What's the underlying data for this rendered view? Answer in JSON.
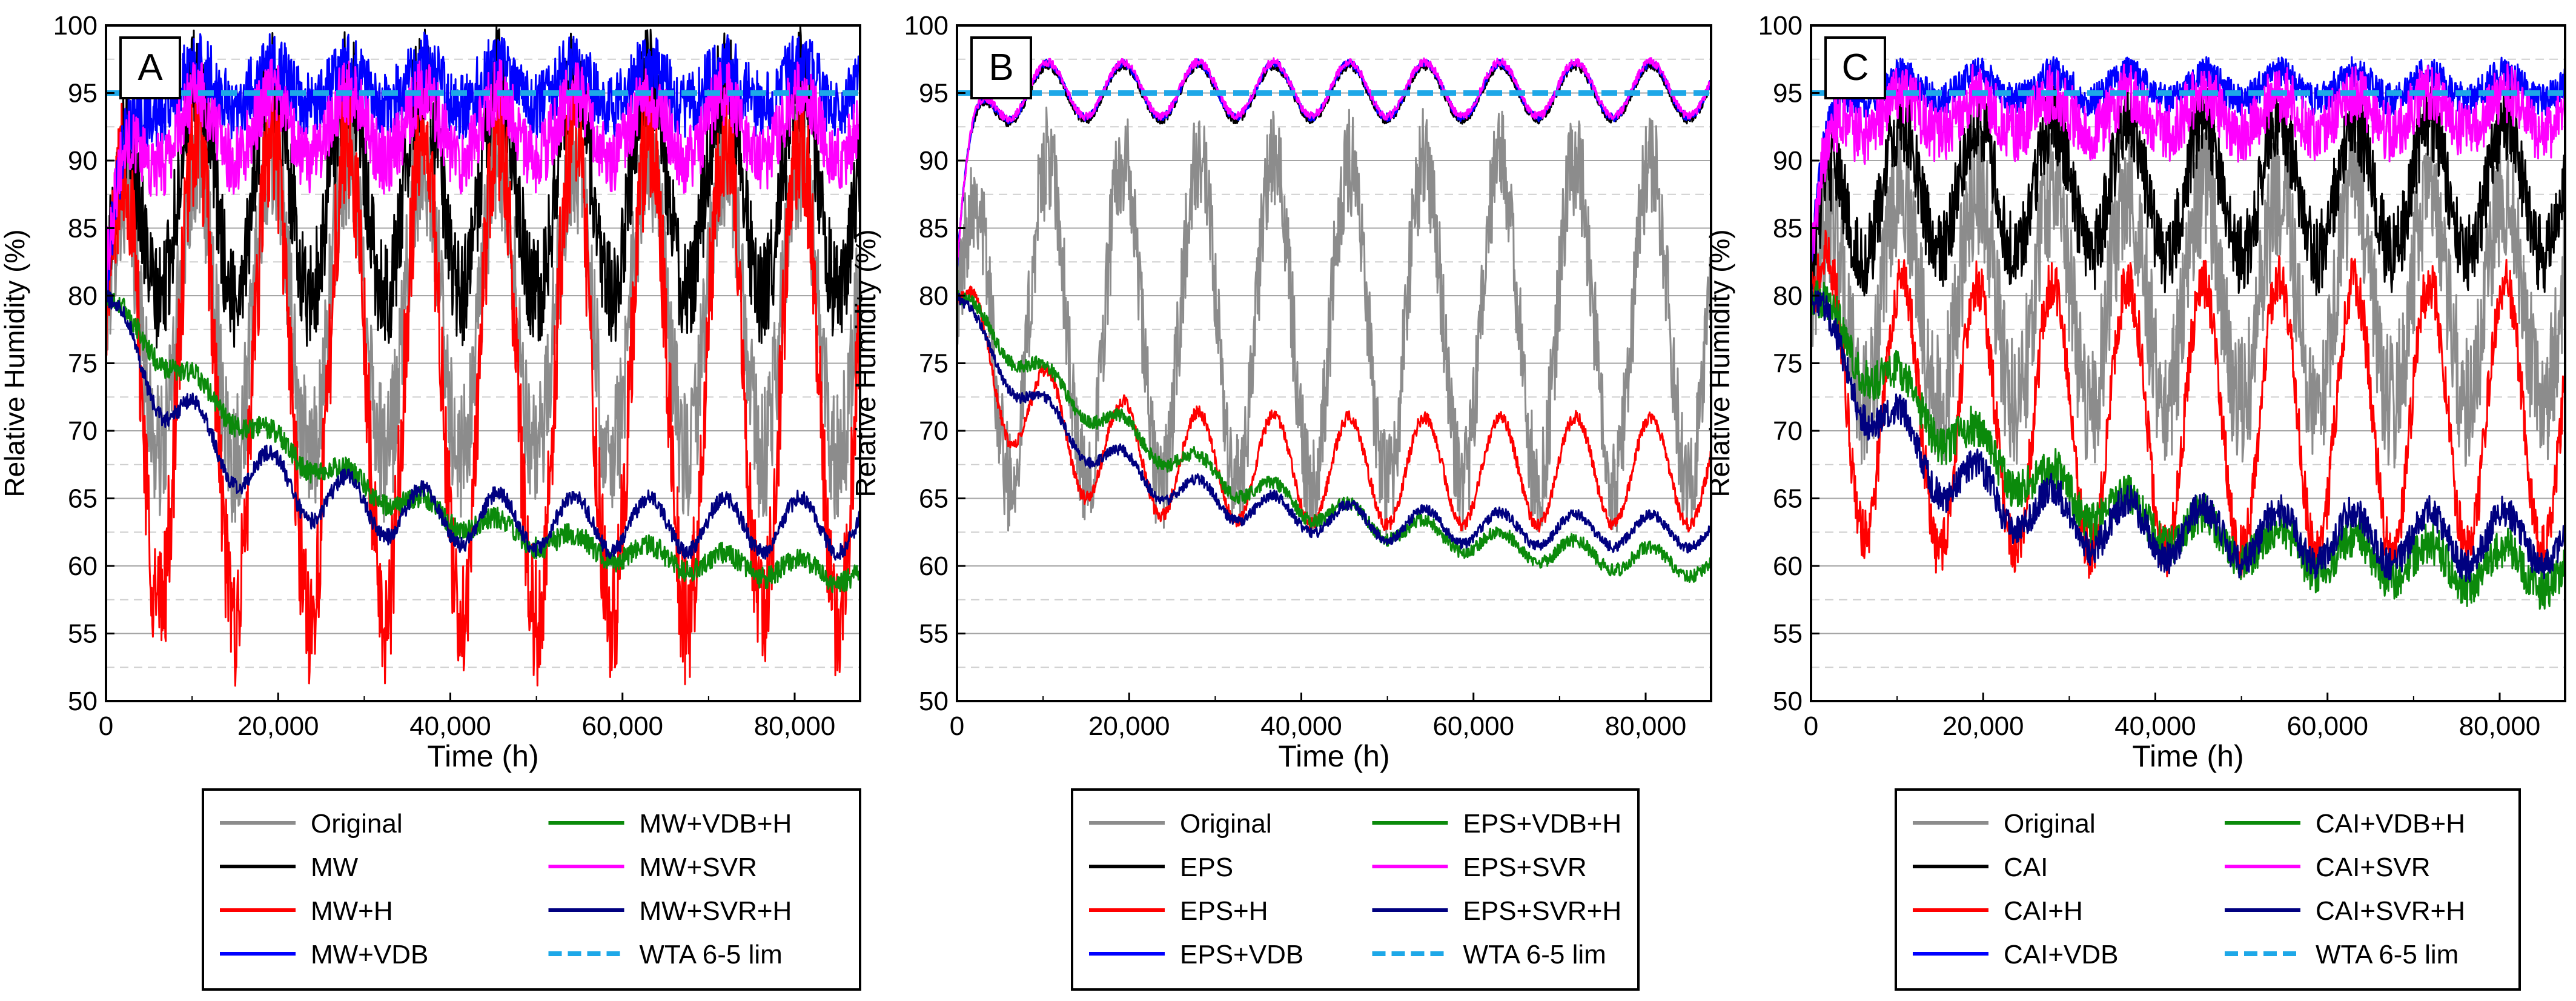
{
  "colors": {
    "Original": "#8c8c8c",
    "Base": "#000000",
    "H": "#ff0000",
    "VDB": "#0000ff",
    "VDBH": "#0b8a0b",
    "SVR": "#ff00ff",
    "SVRH": "#000080",
    "WTA": "#1ea8e8"
  },
  "chart_data": [
    {
      "type": "line",
      "panel_label": "A",
      "xlabel": "Time (h)",
      "ylabel": "Relative Humidity (%)",
      "xlim": [
        0,
        87600
      ],
      "ylim": [
        50,
        100
      ],
      "xticks": [
        0,
        20000,
        40000,
        60000,
        80000
      ],
      "xtick_labels": [
        "0",
        "20,000",
        "40,000",
        "60,000",
        "80,000"
      ],
      "yticks": [
        50,
        55,
        60,
        65,
        70,
        75,
        80,
        85,
        90,
        95,
        100
      ],
      "grid": "major solid, minor dashed",
      "legend_position": "bottom",
      "series": [
        {
          "key": "Original",
          "name": "Original",
          "style": "solid",
          "period_h": 8760,
          "mean": 79,
          "amp": 11,
          "noise": 5,
          "start": 80,
          "tau": 2500
        },
        {
          "key": "Base",
          "name": "MW",
          "style": "solid",
          "period_h": 8760,
          "mean": 88,
          "amp": 8,
          "noise": 4,
          "start": 82,
          "tau": 2500
        },
        {
          "key": "H",
          "name": "MW+H",
          "style": "solid",
          "period_h": 8760,
          "mean": 74,
          "amp": 18,
          "noise": 5,
          "start": 80,
          "tau": 2500
        },
        {
          "key": "VDB",
          "name": "MW+VDB",
          "style": "solid",
          "period_h": 8760,
          "mean": 95.5,
          "amp": 1.5,
          "noise": 2.5,
          "start": 80,
          "tau": 2000
        },
        {
          "key": "VDBH",
          "name": "MW+VDB+H",
          "style": "solid",
          "period_h": 8760,
          "mean": 58.5,
          "amp": 0.8,
          "noise": 0.8,
          "start": 80,
          "tau": 28000
        },
        {
          "key": "SVR",
          "name": "MW+SVR",
          "style": "solid",
          "period_h": 8760,
          "mean": 92.5,
          "amp": 2.5,
          "noise": 2.5,
          "start": 82,
          "tau": 2000
        },
        {
          "key": "SVRH",
          "name": "MW+SVR+H",
          "style": "solid",
          "period_h": 8760,
          "mean": 63,
          "amp": 2,
          "noise": 0.6,
          "start": 80,
          "tau": 12000
        },
        {
          "key": "WTA",
          "name": "WTA 6-5 lim",
          "style": "dashed",
          "constant": 95
        }
      ]
    },
    {
      "type": "line",
      "panel_label": "B",
      "xlabel": "Time (h)",
      "ylabel": "Relative Humidity (%)",
      "xlim": [
        0,
        87600
      ],
      "ylim": [
        50,
        100
      ],
      "xticks": [
        0,
        20000,
        40000,
        60000,
        80000
      ],
      "xtick_labels": [
        "0",
        "20,000",
        "40,000",
        "60,000",
        "80,000"
      ],
      "yticks": [
        50,
        55,
        60,
        65,
        70,
        75,
        80,
        85,
        90,
        95,
        100
      ],
      "grid": "major solid, minor dashed",
      "legend_position": "bottom",
      "series": [
        {
          "key": "Original",
          "name": "Original",
          "style": "solid",
          "period_h": 8760,
          "mean": 78,
          "amp": 12,
          "noise": 4,
          "start": 80,
          "tau": 2500
        },
        {
          "key": "Base",
          "name": "EPS",
          "style": "solid",
          "period_h": 8760,
          "mean": 95,
          "amp": 2,
          "noise": 0.3,
          "start": 82,
          "tau": 1500
        },
        {
          "key": "H",
          "name": "EPS+H",
          "style": "solid",
          "period_h": 8760,
          "mean": 67,
          "amp": 4,
          "noise": 0.5,
          "start": 80,
          "tau": 8000
        },
        {
          "key": "VDB",
          "name": "EPS+VDB",
          "style": "solid",
          "period_h": 8760,
          "mean": 95.2,
          "amp": 2,
          "noise": 0.3,
          "start": 82,
          "tau": 1500
        },
        {
          "key": "VDBH",
          "name": "EPS+VDB+H",
          "style": "solid",
          "period_h": 8760,
          "mean": 59,
          "amp": 1,
          "noise": 0.5,
          "start": 80,
          "tau": 30000
        },
        {
          "key": "SVR",
          "name": "EPS+SVR",
          "style": "solid",
          "period_h": 8760,
          "mean": 95.3,
          "amp": 2,
          "noise": 0.3,
          "start": 82,
          "tau": 1500
        },
        {
          "key": "SVRH",
          "name": "EPS+SVR+H",
          "style": "solid",
          "period_h": 8760,
          "mean": 62.5,
          "amp": 1.2,
          "noise": 0.4,
          "start": 80,
          "tau": 15000
        },
        {
          "key": "WTA",
          "name": "WTA 6-5 lim",
          "style": "dashed",
          "constant": 95
        }
      ]
    },
    {
      "type": "line",
      "panel_label": "C",
      "xlabel": "Time (h)",
      "ylabel": "Relative Humidity (%)",
      "xlim": [
        0,
        87600
      ],
      "ylim": [
        50,
        100
      ],
      "xticks": [
        0,
        20000,
        40000,
        60000,
        80000
      ],
      "xtick_labels": [
        "0",
        "20,000",
        "40,000",
        "60,000",
        "80,000"
      ],
      "yticks": [
        50,
        55,
        60,
        65,
        70,
        75,
        80,
        85,
        90,
        95,
        100
      ],
      "grid": "major solid, minor dashed",
      "legend_position": "bottom",
      "series": [
        {
          "key": "Original",
          "name": "Original",
          "style": "solid",
          "period_h": 8760,
          "mean": 80,
          "amp": 8,
          "noise": 5,
          "start": 80,
          "tau": 2500
        },
        {
          "key": "Base",
          "name": "CAI",
          "style": "solid",
          "period_h": 8760,
          "mean": 88,
          "amp": 5,
          "noise": 3,
          "start": 82,
          "tau": 2500
        },
        {
          "key": "H",
          "name": "CAI+H",
          "style": "solid",
          "period_h": 8760,
          "mean": 71,
          "amp": 10,
          "noise": 2,
          "start": 80,
          "tau": 3000
        },
        {
          "key": "VDB",
          "name": "CAI+VDB",
          "style": "solid",
          "period_h": 8760,
          "mean": 95.5,
          "amp": 1,
          "noise": 1.2,
          "start": 82,
          "tau": 1500
        },
        {
          "key": "VDBH",
          "name": "CAI+VDB+H",
          "style": "solid",
          "period_h": 8760,
          "mean": 59,
          "amp": 1.5,
          "noise": 1.5,
          "start": 80,
          "tau": 25000
        },
        {
          "key": "SVR",
          "name": "CAI+SVR",
          "style": "solid",
          "period_h": 8760,
          "mean": 93.5,
          "amp": 1.5,
          "noise": 2.2,
          "start": 82,
          "tau": 1500
        },
        {
          "key": "SVRH",
          "name": "CAI+SVR+H",
          "style": "solid",
          "period_h": 8760,
          "mean": 62,
          "amp": 2,
          "noise": 1.2,
          "start": 80,
          "tau": 12000
        },
        {
          "key": "WTA",
          "name": "WTA 6-5 lim",
          "style": "dashed",
          "constant": 95
        }
      ]
    }
  ]
}
